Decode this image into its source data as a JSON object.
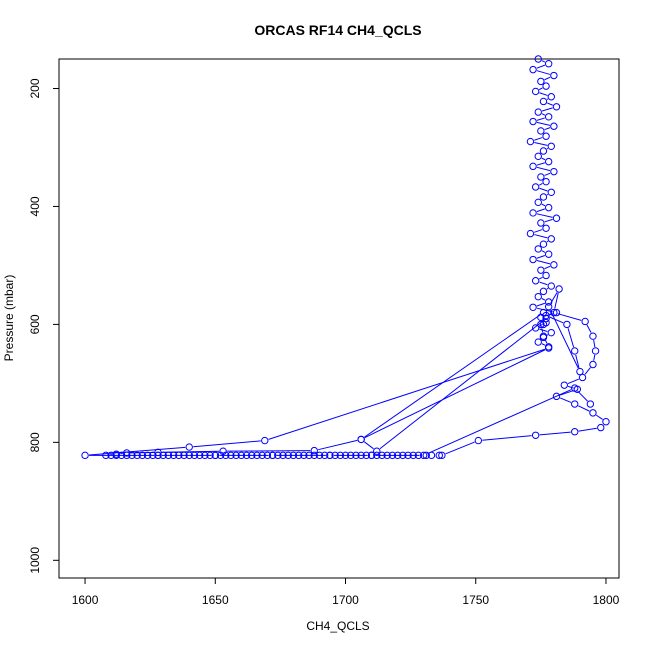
{
  "chart_data": {
    "type": "line",
    "title": "ORCAS RF14 CH4_QCLS",
    "xlabel": "CH4_QCLS",
    "ylabel": "Pressure (mbar)",
    "xlim": [
      1590,
      1805
    ],
    "ylim": [
      1030,
      150
    ],
    "y_axis_inverted": true,
    "grid": false,
    "legend": "none",
    "x_ticks": [
      1600,
      1650,
      1700,
      1750,
      1800
    ],
    "y_ticks": [
      200,
      400,
      600,
      800,
      1000
    ],
    "series_color": "#0000ff",
    "marker": "open-circle",
    "points": [
      [
        1774,
        150
      ],
      [
        1778,
        158
      ],
      [
        1772,
        168
      ],
      [
        1780,
        178
      ],
      [
        1775,
        188
      ],
      [
        1777,
        196
      ],
      [
        1773,
        205
      ],
      [
        1779,
        214
      ],
      [
        1776,
        222
      ],
      [
        1781,
        231
      ],
      [
        1774,
        240
      ],
      [
        1778,
        248
      ],
      [
        1772,
        256
      ],
      [
        1780,
        264
      ],
      [
        1775,
        272
      ],
      [
        1777,
        281
      ],
      [
        1771,
        290
      ],
      [
        1779,
        298
      ],
      [
        1776,
        306
      ],
      [
        1774,
        315
      ],
      [
        1778,
        324
      ],
      [
        1772,
        332
      ],
      [
        1780,
        341
      ],
      [
        1775,
        350
      ],
      [
        1777,
        358
      ],
      [
        1773,
        367
      ],
      [
        1779,
        376
      ],
      [
        1776,
        384
      ],
      [
        1774,
        393
      ],
      [
        1778,
        402
      ],
      [
        1772,
        411
      ],
      [
        1781,
        420
      ],
      [
        1775,
        428
      ],
      [
        1777,
        437
      ],
      [
        1771,
        446
      ],
      [
        1779,
        455
      ],
      [
        1776,
        464
      ],
      [
        1774,
        472
      ],
      [
        1778,
        481
      ],
      [
        1772,
        490
      ],
      [
        1780,
        499
      ],
      [
        1775,
        508
      ],
      [
        1777,
        517
      ],
      [
        1773,
        526
      ],
      [
        1779,
        535
      ],
      [
        1776,
        544
      ],
      [
        1774,
        553
      ],
      [
        1778,
        562
      ],
      [
        1772,
        571
      ],
      [
        1781,
        580
      ],
      [
        1775,
        588
      ],
      [
        1777,
        597
      ],
      [
        1773,
        606
      ],
      [
        1779,
        614
      ],
      [
        1776,
        622
      ],
      [
        1774,
        630
      ],
      [
        1778,
        638
      ],
      [
        1776,
        620
      ],
      [
        1775,
        600
      ],
      [
        1777,
        585
      ],
      [
        1785,
        600
      ],
      [
        1788,
        645
      ],
      [
        1790,
        680
      ],
      [
        1778,
        570
      ],
      [
        1782,
        540
      ],
      [
        1780,
        580
      ],
      [
        1792,
        595
      ],
      [
        1795,
        620
      ],
      [
        1796,
        645
      ],
      [
        1795,
        668
      ],
      [
        1791,
        690
      ],
      [
        1784,
        703
      ],
      [
        1789,
        710
      ],
      [
        1781,
        722
      ],
      [
        1788,
        735
      ],
      [
        1795,
        750
      ],
      [
        1800,
        765
      ],
      [
        1798,
        775
      ],
      [
        1788,
        782
      ],
      [
        1773,
        788
      ],
      [
        1751,
        797
      ],
      [
        1737,
        822
      ],
      [
        1736,
        822
      ],
      [
        1733,
        822
      ],
      [
        1731,
        822
      ],
      [
        1728,
        822
      ],
      [
        1726,
        822
      ],
      [
        1724,
        822
      ],
      [
        1722,
        822
      ],
      [
        1720,
        822
      ],
      [
        1718,
        822
      ],
      [
        1716,
        822
      ],
      [
        1714,
        822
      ],
      [
        1712,
        822
      ],
      [
        1710,
        822
      ],
      [
        1708,
        822
      ],
      [
        1706,
        822
      ],
      [
        1704,
        822
      ],
      [
        1702,
        822
      ],
      [
        1700,
        822
      ],
      [
        1698,
        822
      ],
      [
        1696,
        822
      ],
      [
        1694,
        822
      ],
      [
        1692,
        822
      ],
      [
        1690,
        822
      ],
      [
        1688,
        822
      ],
      [
        1686,
        822
      ],
      [
        1684,
        822
      ],
      [
        1682,
        822
      ],
      [
        1680,
        822
      ],
      [
        1678,
        822
      ],
      [
        1676,
        822
      ],
      [
        1674,
        822
      ],
      [
        1672,
        822
      ],
      [
        1670,
        822
      ],
      [
        1668,
        822
      ],
      [
        1666,
        822
      ],
      [
        1664,
        822
      ],
      [
        1662,
        822
      ],
      [
        1660,
        822
      ],
      [
        1658,
        822
      ],
      [
        1656,
        822
      ],
      [
        1654,
        822
      ],
      [
        1652,
        822
      ],
      [
        1650,
        822
      ],
      [
        1648,
        822
      ],
      [
        1646,
        822
      ],
      [
        1644,
        822
      ],
      [
        1642,
        822
      ],
      [
        1640,
        822
      ],
      [
        1638,
        822
      ],
      [
        1636,
        822
      ],
      [
        1634,
        822
      ],
      [
        1632,
        822
      ],
      [
        1630,
        822
      ],
      [
        1628,
        822
      ],
      [
        1626,
        822
      ],
      [
        1624,
        822
      ],
      [
        1622,
        822
      ],
      [
        1620,
        822
      ],
      [
        1618,
        822
      ],
      [
        1616,
        822
      ],
      [
        1614,
        822
      ],
      [
        1612,
        822
      ],
      [
        1610,
        822
      ],
      [
        1608,
        822
      ],
      [
        1612,
        820
      ],
      [
        1616,
        818
      ],
      [
        1628,
        817
      ],
      [
        1653,
        815
      ],
      [
        1688,
        814
      ],
      [
        1706,
        795
      ],
      [
        1776,
        580
      ],
      [
        1776,
        600
      ],
      [
        1777,
        590
      ],
      [
        1712,
        815
      ],
      [
        1706,
        795
      ],
      [
        1778,
        640
      ],
      [
        1669,
        797
      ],
      [
        1640,
        808
      ],
      [
        1600,
        822
      ],
      [
        1628,
        822
      ],
      [
        1650,
        822
      ],
      [
        1672,
        822
      ],
      [
        1694,
        822
      ],
      [
        1710,
        822
      ],
      [
        1730,
        822
      ],
      [
        1788,
        708
      ],
      [
        1794,
        735
      ]
    ]
  }
}
